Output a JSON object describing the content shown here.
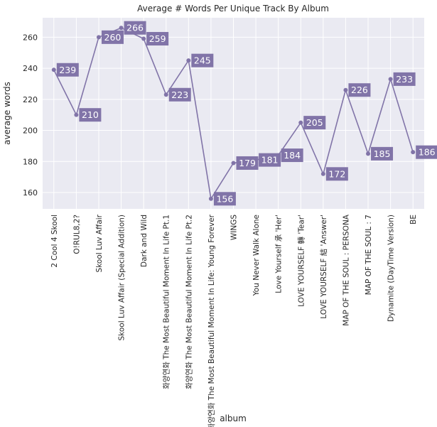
{
  "chart_data": {
    "type": "line",
    "title": "Average # Words Per Unique Track By Album",
    "xlabel": "album",
    "ylabel": "average words",
    "categories": [
      "2 Cool 4 Skool",
      "O!RUL8,2?",
      "Skool Luv Affair",
      "Skool Luv Affair (Special Addition)",
      "Dark and Wild",
      "화양연화 The Most Beautiful Moment In Life Pt.1",
      "화양연화 The Most Beautiful Moment In Life Pt.2",
      "화양연화 The Most Beautiful Moment In Life: Young Forever",
      "WINGS",
      "You Never Walk Alone",
      "Love Yourself 承 'Her'",
      "LOVE YOURSELF 轉 'Tear'",
      "LOVE YOURSELF 結 'Answer'",
      "MAP OF THE SOUL : PERSONA",
      "MAP OF THE SOUL : 7",
      "Dynamite (DayTime Version)",
      "BE"
    ],
    "values": [
      239,
      210,
      260,
      266,
      259,
      223,
      245,
      156,
      179,
      181,
      184,
      205,
      172,
      226,
      185,
      233,
      186
    ],
    "data_labels": [
      "239",
      "210",
      "260",
      "266",
      "259",
      "223",
      "245",
      "156",
      "179",
      "181",
      "184",
      "205",
      "172",
      "226",
      "185",
      "233",
      "186"
    ],
    "ylim": [
      149.5,
      272.5
    ],
    "yticks": [
      "160",
      "180",
      "200",
      "220",
      "240",
      "260"
    ],
    "grid": true,
    "colors": {
      "line": "#8174a8",
      "label_box": "#8174a8",
      "plot_bg": "#eaeaf2",
      "grid": "#ffffff"
    }
  }
}
